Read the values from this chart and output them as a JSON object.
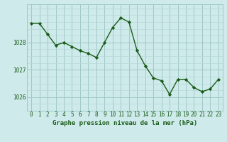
{
  "x": [
    0,
    1,
    2,
    3,
    4,
    5,
    6,
    7,
    8,
    9,
    10,
    11,
    12,
    13,
    14,
    15,
    16,
    17,
    18,
    19,
    20,
    21,
    22,
    23
  ],
  "y": [
    1028.7,
    1028.7,
    1028.3,
    1027.9,
    1028.0,
    1027.85,
    1027.7,
    1027.6,
    1027.45,
    1028.0,
    1028.55,
    1028.9,
    1028.75,
    1027.7,
    1027.15,
    1026.7,
    1026.6,
    1026.1,
    1026.65,
    1026.65,
    1026.35,
    1026.2,
    1026.3,
    1026.65
  ],
  "line_color": "#1a5c1a",
  "marker": "D",
  "marker_size": 2.2,
  "bg_color": "#ceeaea",
  "grid_color_major": "#a0c8c8",
  "grid_color_minor": "#b8d8d8",
  "text_color": "#1a5c1a",
  "xlabel": "Graphe pression niveau de la mer (hPa)",
  "xlabel_fontsize": 6.5,
  "tick_fontsize": 5.5,
  "yticks": [
    1026,
    1027,
    1028
  ],
  "ylim": [
    1025.5,
    1029.4
  ],
  "xlim": [
    -0.5,
    23.5
  ]
}
